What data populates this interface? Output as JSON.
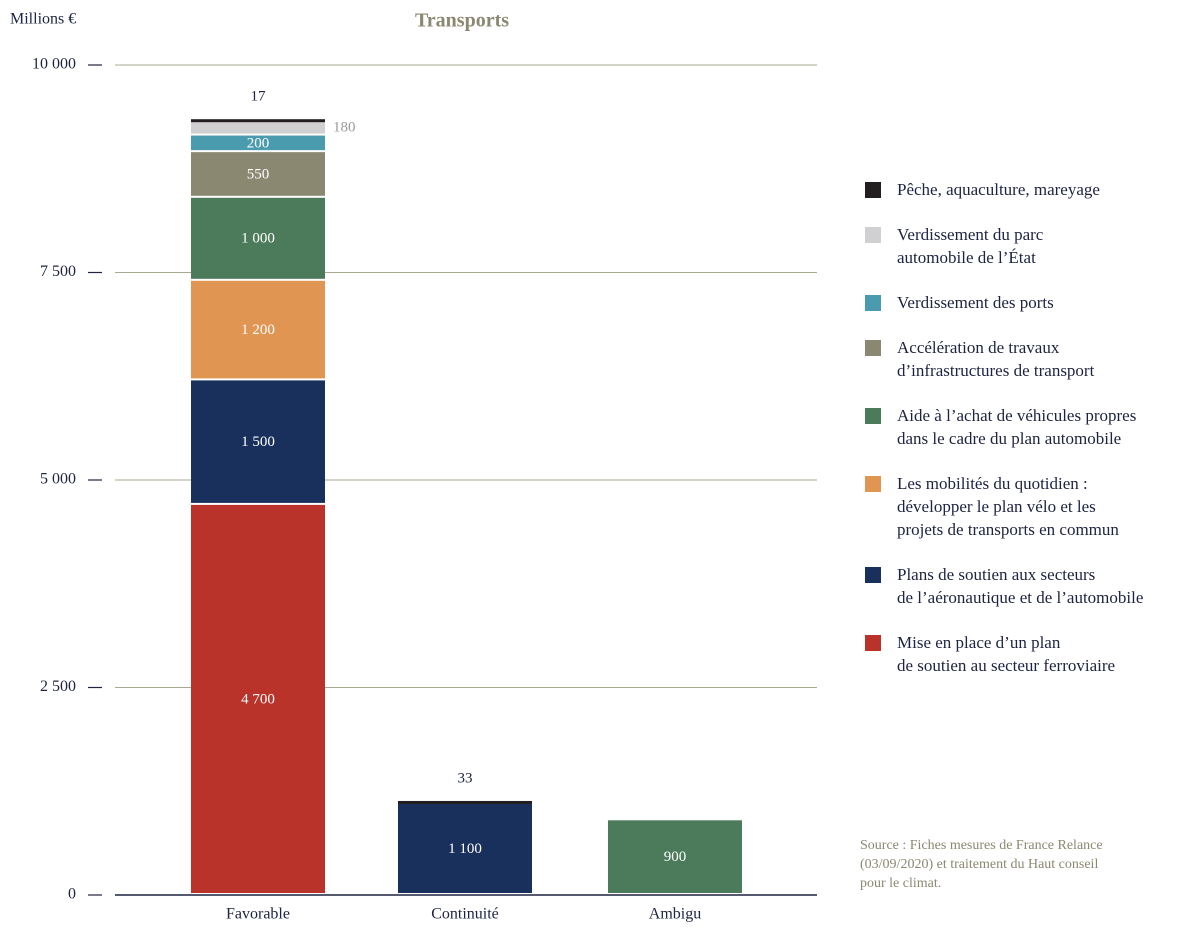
{
  "chart_data": {
    "type": "bar",
    "stacked": true,
    "title": "Transports",
    "y_label": "Millions €",
    "categories": [
      "Favorable",
      "Continuité",
      "Ambigu"
    ],
    "ylim": [
      0,
      10000
    ],
    "yticks": [
      0,
      {
        "value": 2500,
        "label": "2 500"
      },
      {
        "value": 5000,
        "label": "5 000"
      },
      {
        "value": 7500,
        "label": "7 500"
      },
      {
        "value": 10000,
        "label": "10 000"
      }
    ],
    "grid": true,
    "series": [
      {
        "name": "Mise en place d’un plan\nde soutien au secteur ferroviaire",
        "color": "#b9332b",
        "values": [
          4700,
          null,
          null
        ],
        "value_labels": [
          "4 700",
          null,
          null
        ]
      },
      {
        "name": "Plans de soutien aux secteurs\nde l’aéronautique et de l’automobile",
        "color": "#18305b",
        "values": [
          1500,
          1100,
          null
        ],
        "value_labels": [
          "1 500",
          "1 100",
          null
        ]
      },
      {
        "name": "Les mobilités du quotidien :\ndévelopper le plan vélo et les\nprojets de transports en commun",
        "color": "#e09552",
        "values": [
          1200,
          null,
          null
        ],
        "value_labels": [
          "1 200",
          null,
          null
        ]
      },
      {
        "name": "Aide à l’achat de véhicules propres\ndans le cadre du plan automobile",
        "color": "#4b7b5b",
        "values": [
          1000,
          null,
          900
        ],
        "value_labels": [
          "1 000",
          null,
          null
        ]
      },
      {
        "name": "Accélération de travaux\nd’infrastructures de transport",
        "color": "#8b8872",
        "values": [
          550,
          null,
          null
        ]
      },
      {
        "name": "Verdissement des ports",
        "color": "#4a9bad",
        "values": [
          200,
          null,
          null
        ]
      },
      {
        "name": "Verdissement du parc\nautomobile de l’État",
        "color": "#d0d0d2",
        "values": [
          180,
          null,
          null
        ]
      },
      {
        "name": "Pêche, aquaculture, mareyage",
        "color": "#231f20",
        "values": [
          17,
          33,
          null
        ]
      }
    ],
    "source": "Source : Fiches mesures de France Relance\n(03/09/2020) et traitement du Haut conseil\npour le climat."
  }
}
